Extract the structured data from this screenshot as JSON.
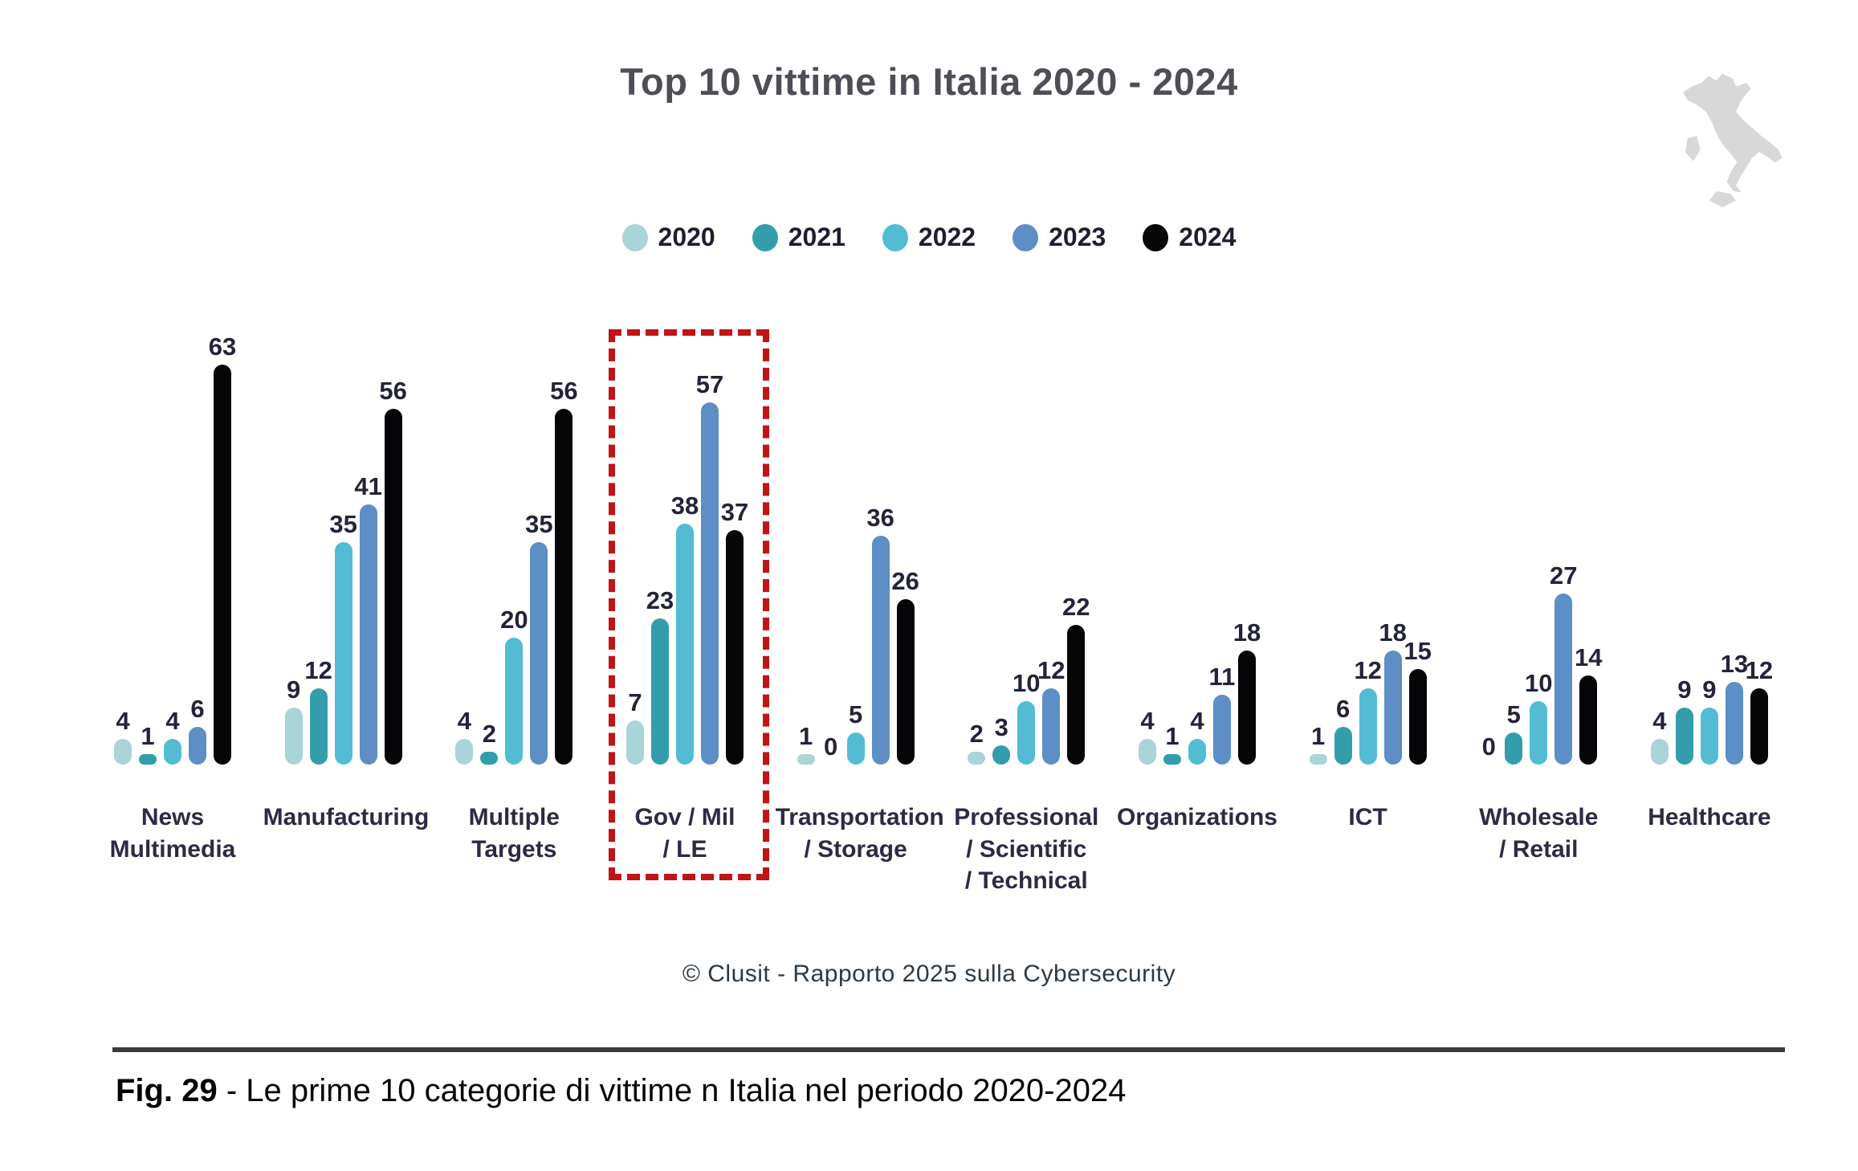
{
  "title": "Top 10 vittime in Italia 2020 - 2024",
  "italy_map": {
    "name": "italy-silhouette",
    "color": "#d8d8d8"
  },
  "chart_data": {
    "type": "bar",
    "title": "Top 10 vittime in Italia 2020 - 2024",
    "legend_position": "top",
    "grid": false,
    "ylim": [
      0,
      63
    ],
    "categories": [
      "News\nMultimedia",
      "Manufacturing",
      "Multiple\nTargets",
      "Gov / Mil\n/ LE",
      "Transportation\n/ Storage",
      "Professional\n/ Scientific\n/ Technical",
      "Organizations",
      "ICT",
      "Wholesale\n/ Retail",
      "Healthcare"
    ],
    "series": [
      {
        "name": "2020",
        "color": "#a9d4d8",
        "values": [
          4,
          9,
          4,
          7,
          1,
          2,
          4,
          1,
          0,
          4
        ]
      },
      {
        "name": "2021",
        "color": "#339dab",
        "values": [
          1,
          12,
          2,
          23,
          0,
          3,
          1,
          6,
          5,
          9
        ]
      },
      {
        "name": "2022",
        "color": "#54bcd2",
        "values": [
          4,
          35,
          20,
          38,
          5,
          10,
          4,
          12,
          10,
          9
        ]
      },
      {
        "name": "2023",
        "color": "#5d8ec5",
        "values": [
          6,
          41,
          35,
          57,
          36,
          12,
          11,
          18,
          27,
          13
        ]
      },
      {
        "name": "2024",
        "color": "#060608",
        "values": [
          63,
          56,
          56,
          37,
          26,
          22,
          18,
          15,
          14,
          12
        ]
      }
    ],
    "highlight": {
      "category_index": 3,
      "style": "dashed-box",
      "color": "#c11414"
    }
  },
  "source_caption": "© Clusit - Rapporto 2025 sulla Cybersecurity",
  "figure_caption": {
    "label": "Fig. 29",
    "text": " - Le prime 10 categorie di vittime n Italia nel periodo 2020-2024"
  }
}
